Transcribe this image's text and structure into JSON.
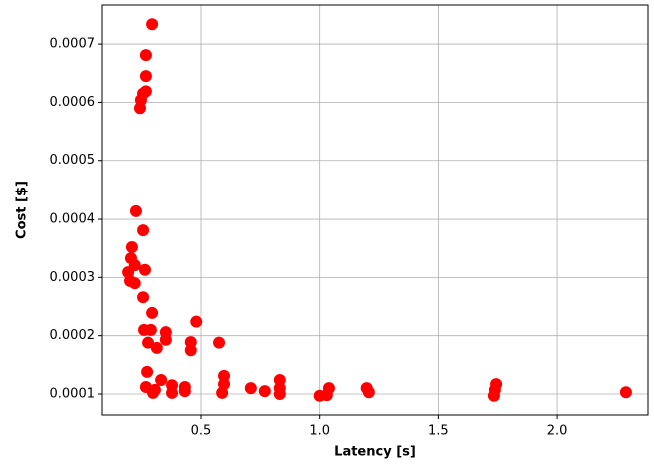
{
  "chart_data": {
    "type": "scatter",
    "x_label": "Latency [s]",
    "y_label": "Cost [$]",
    "color": "#ff0000",
    "grid": true,
    "xlim": [
      0.083,
      2.383
    ],
    "ylim": [
      6.4e-05,
      0.000767
    ],
    "xticks": [
      0.5,
      {
        "value": 1,
        "label": "1.0"
      },
      1.5,
      {
        "value": 2,
        "label": "2.0"
      }
    ],
    "yticks": [
      0.0001,
      0.0002,
      0.0003,
      0.0004,
      0.0005,
      0.0006,
      0.0007
    ],
    "x": [
      0.294,
      0.268,
      0.268,
      0.268,
      0.256,
      0.247,
      0.243,
      0.226,
      0.256,
      0.209,
      0.205,
      0.221,
      0.264,
      0.193,
      0.201,
      0.221,
      0.256,
      0.294,
      0.26,
      0.289,
      0.277,
      0.314,
      0.352,
      0.352,
      0.48,
      0.457,
      0.457,
      0.576,
      0.273,
      0.332,
      0.268,
      0.306,
      0.298,
      0.378,
      0.378,
      0.432,
      0.432,
      0.597,
      0.597,
      0.589,
      0.71,
      0.769,
      0.832,
      0.832,
      0.832,
      1.0,
      1.039,
      1.03,
      1.198,
      1.207,
      1.743,
      1.738,
      1.734,
      2.29
    ],
    "values": [
      0.000734,
      0.000681,
      0.000645,
      0.000619,
      0.000615,
      0.000604,
      0.00059,
      0.000414,
      0.000381,
      0.000352,
      0.000333,
      0.000321,
      0.000313,
      0.000309,
      0.000294,
      0.00029,
      0.000266,
      0.000239,
      0.00021,
      0.00021,
      0.000188,
      0.000179,
      0.000206,
      0.000193,
      0.000224,
      0.000189,
      0.000175,
      0.000188,
      0.000138,
      0.000124,
      0.000112,
      0.000107,
      0.000102,
      0.000115,
      0.000102,
      0.000112,
      0.000105,
      0.000131,
      0.000117,
      0.000102,
      0.00011,
      0.000105,
      0.000124,
      0.00011,
      0.0001,
      9.7e-05,
      0.00011,
      9.8e-05,
      0.00011,
      0.000103,
      0.000117,
      0.000107,
      9.7e-05,
      0.000103
    ]
  }
}
